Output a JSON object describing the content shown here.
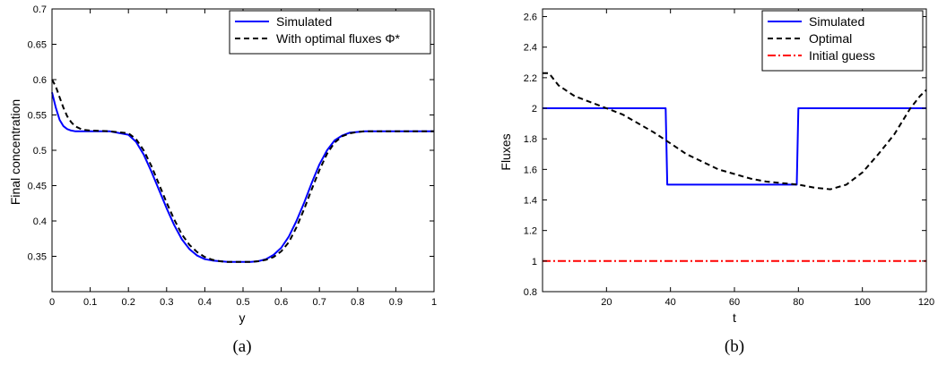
{
  "chart_data": [
    {
      "type": "line",
      "caption": "(a)",
      "xlabel": "y",
      "ylabel": "Final concentration",
      "xlim": [
        0,
        1
      ],
      "ylim": [
        0.3,
        0.7
      ],
      "xticks": [
        0,
        0.1,
        0.2,
        0.3,
        0.4,
        0.5,
        0.6,
        0.7,
        0.8,
        0.9,
        1
      ],
      "xtick_labels": [
        "0",
        "0.1",
        "0.2",
        "0.3",
        "0.4",
        "0.5",
        "0.6",
        "0.7",
        "0.8",
        "0.9",
        "1"
      ],
      "yticks": [
        0.35,
        0.4,
        0.45,
        0.5,
        0.55,
        0.6,
        0.65,
        0.7
      ],
      "ytick_labels": [
        "0.35",
        "0.4",
        "0.45",
        "0.5",
        "0.55",
        "0.6",
        "0.65",
        "0.7"
      ],
      "grid": false,
      "legend": "top-right",
      "series": [
        {
          "name": "Simulated",
          "color": "#0000ff",
          "style": "solid",
          "x": [
            0,
            0.01,
            0.02,
            0.03,
            0.04,
            0.05,
            0.06,
            0.08,
            0.1,
            0.15,
            0.2,
            0.22,
            0.24,
            0.26,
            0.28,
            0.3,
            0.32,
            0.34,
            0.36,
            0.38,
            0.4,
            0.42,
            0.44,
            0.46,
            0.48,
            0.5,
            0.52,
            0.54,
            0.56,
            0.58,
            0.6,
            0.62,
            0.64,
            0.66,
            0.68,
            0.7,
            0.72,
            0.74,
            0.76,
            0.78,
            0.8,
            0.82,
            0.85,
            0.9,
            0.95,
            1
          ],
          "y": [
            0.582,
            0.56,
            0.543,
            0.534,
            0.53,
            0.528,
            0.527,
            0.527,
            0.527,
            0.527,
            0.522,
            0.512,
            0.494,
            0.47,
            0.444,
            0.418,
            0.394,
            0.374,
            0.36,
            0.351,
            0.346,
            0.344,
            0.343,
            0.342,
            0.342,
            0.342,
            0.342,
            0.343,
            0.346,
            0.352,
            0.362,
            0.378,
            0.4,
            0.426,
            0.454,
            0.48,
            0.5,
            0.514,
            0.521,
            0.525,
            0.526,
            0.527,
            0.527,
            0.527,
            0.527,
            0.527
          ]
        },
        {
          "name": "With optimal fluxes Φ*",
          "color": "#000000",
          "style": "dashed",
          "x": [
            0,
            0.01,
            0.02,
            0.03,
            0.04,
            0.05,
            0.06,
            0.08,
            0.1,
            0.15,
            0.2,
            0.22,
            0.24,
            0.26,
            0.28,
            0.3,
            0.32,
            0.34,
            0.36,
            0.38,
            0.4,
            0.42,
            0.44,
            0.46,
            0.48,
            0.5,
            0.52,
            0.54,
            0.56,
            0.58,
            0.6,
            0.62,
            0.64,
            0.66,
            0.68,
            0.7,
            0.72,
            0.74,
            0.76,
            0.78,
            0.8,
            0.82,
            0.85,
            0.9,
            0.95,
            1
          ],
          "y": [
            0.6,
            0.59,
            0.575,
            0.56,
            0.548,
            0.54,
            0.534,
            0.529,
            0.528,
            0.527,
            0.524,
            0.516,
            0.5,
            0.478,
            0.452,
            0.426,
            0.402,
            0.381,
            0.366,
            0.356,
            0.349,
            0.345,
            0.343,
            0.342,
            0.342,
            0.342,
            0.342,
            0.343,
            0.345,
            0.349,
            0.357,
            0.37,
            0.391,
            0.417,
            0.445,
            0.472,
            0.495,
            0.511,
            0.52,
            0.524,
            0.526,
            0.527,
            0.527,
            0.527,
            0.527,
            0.527
          ]
        }
      ]
    },
    {
      "type": "line",
      "caption": "(b)",
      "xlabel": "t",
      "ylabel": "Fluxes",
      "xlim": [
        0,
        120
      ],
      "ylim": [
        0.8,
        2.65
      ],
      "xticks": [
        20,
        40,
        60,
        80,
        100,
        120
      ],
      "xtick_labels": [
        "20",
        "40",
        "60",
        "80",
        "100",
        "120"
      ],
      "yticks": [
        0.8,
        1,
        1.2,
        1.4,
        1.6,
        1.8,
        2,
        2.2,
        2.4,
        2.6
      ],
      "ytick_labels": [
        "0.8",
        "1",
        "1.2",
        "1.4",
        "1.6",
        "1.8",
        "2",
        "2.2",
        "2.4",
        "2.6"
      ],
      "grid": false,
      "legend": "top-right",
      "series": [
        {
          "name": "Simulated",
          "color": "#0000ff",
          "style": "solid",
          "x": [
            0,
            38.5,
            39,
            79.5,
            80,
            120
          ],
          "y": [
            2,
            2,
            1.5,
            1.5,
            2,
            2
          ]
        },
        {
          "name": "Optimal",
          "color": "#000000",
          "style": "dashed",
          "x": [
            0,
            2,
            5,
            10,
            15,
            20,
            25,
            30,
            35,
            40,
            45,
            50,
            55,
            60,
            65,
            70,
            75,
            80,
            85,
            90,
            95,
            100,
            105,
            110,
            115,
            118,
            120
          ],
          "y": [
            2.23,
            2.23,
            2.15,
            2.08,
            2.04,
            2.0,
            1.96,
            1.9,
            1.84,
            1.77,
            1.7,
            1.65,
            1.6,
            1.57,
            1.54,
            1.52,
            1.51,
            1.5,
            1.48,
            1.47,
            1.5,
            1.58,
            1.7,
            1.83,
            2.0,
            2.08,
            2.12
          ]
        },
        {
          "name": "Initial guess",
          "color": "#ff0000",
          "style": "dashdot",
          "x": [
            0,
            120
          ],
          "y": [
            1,
            1
          ]
        }
      ]
    }
  ]
}
